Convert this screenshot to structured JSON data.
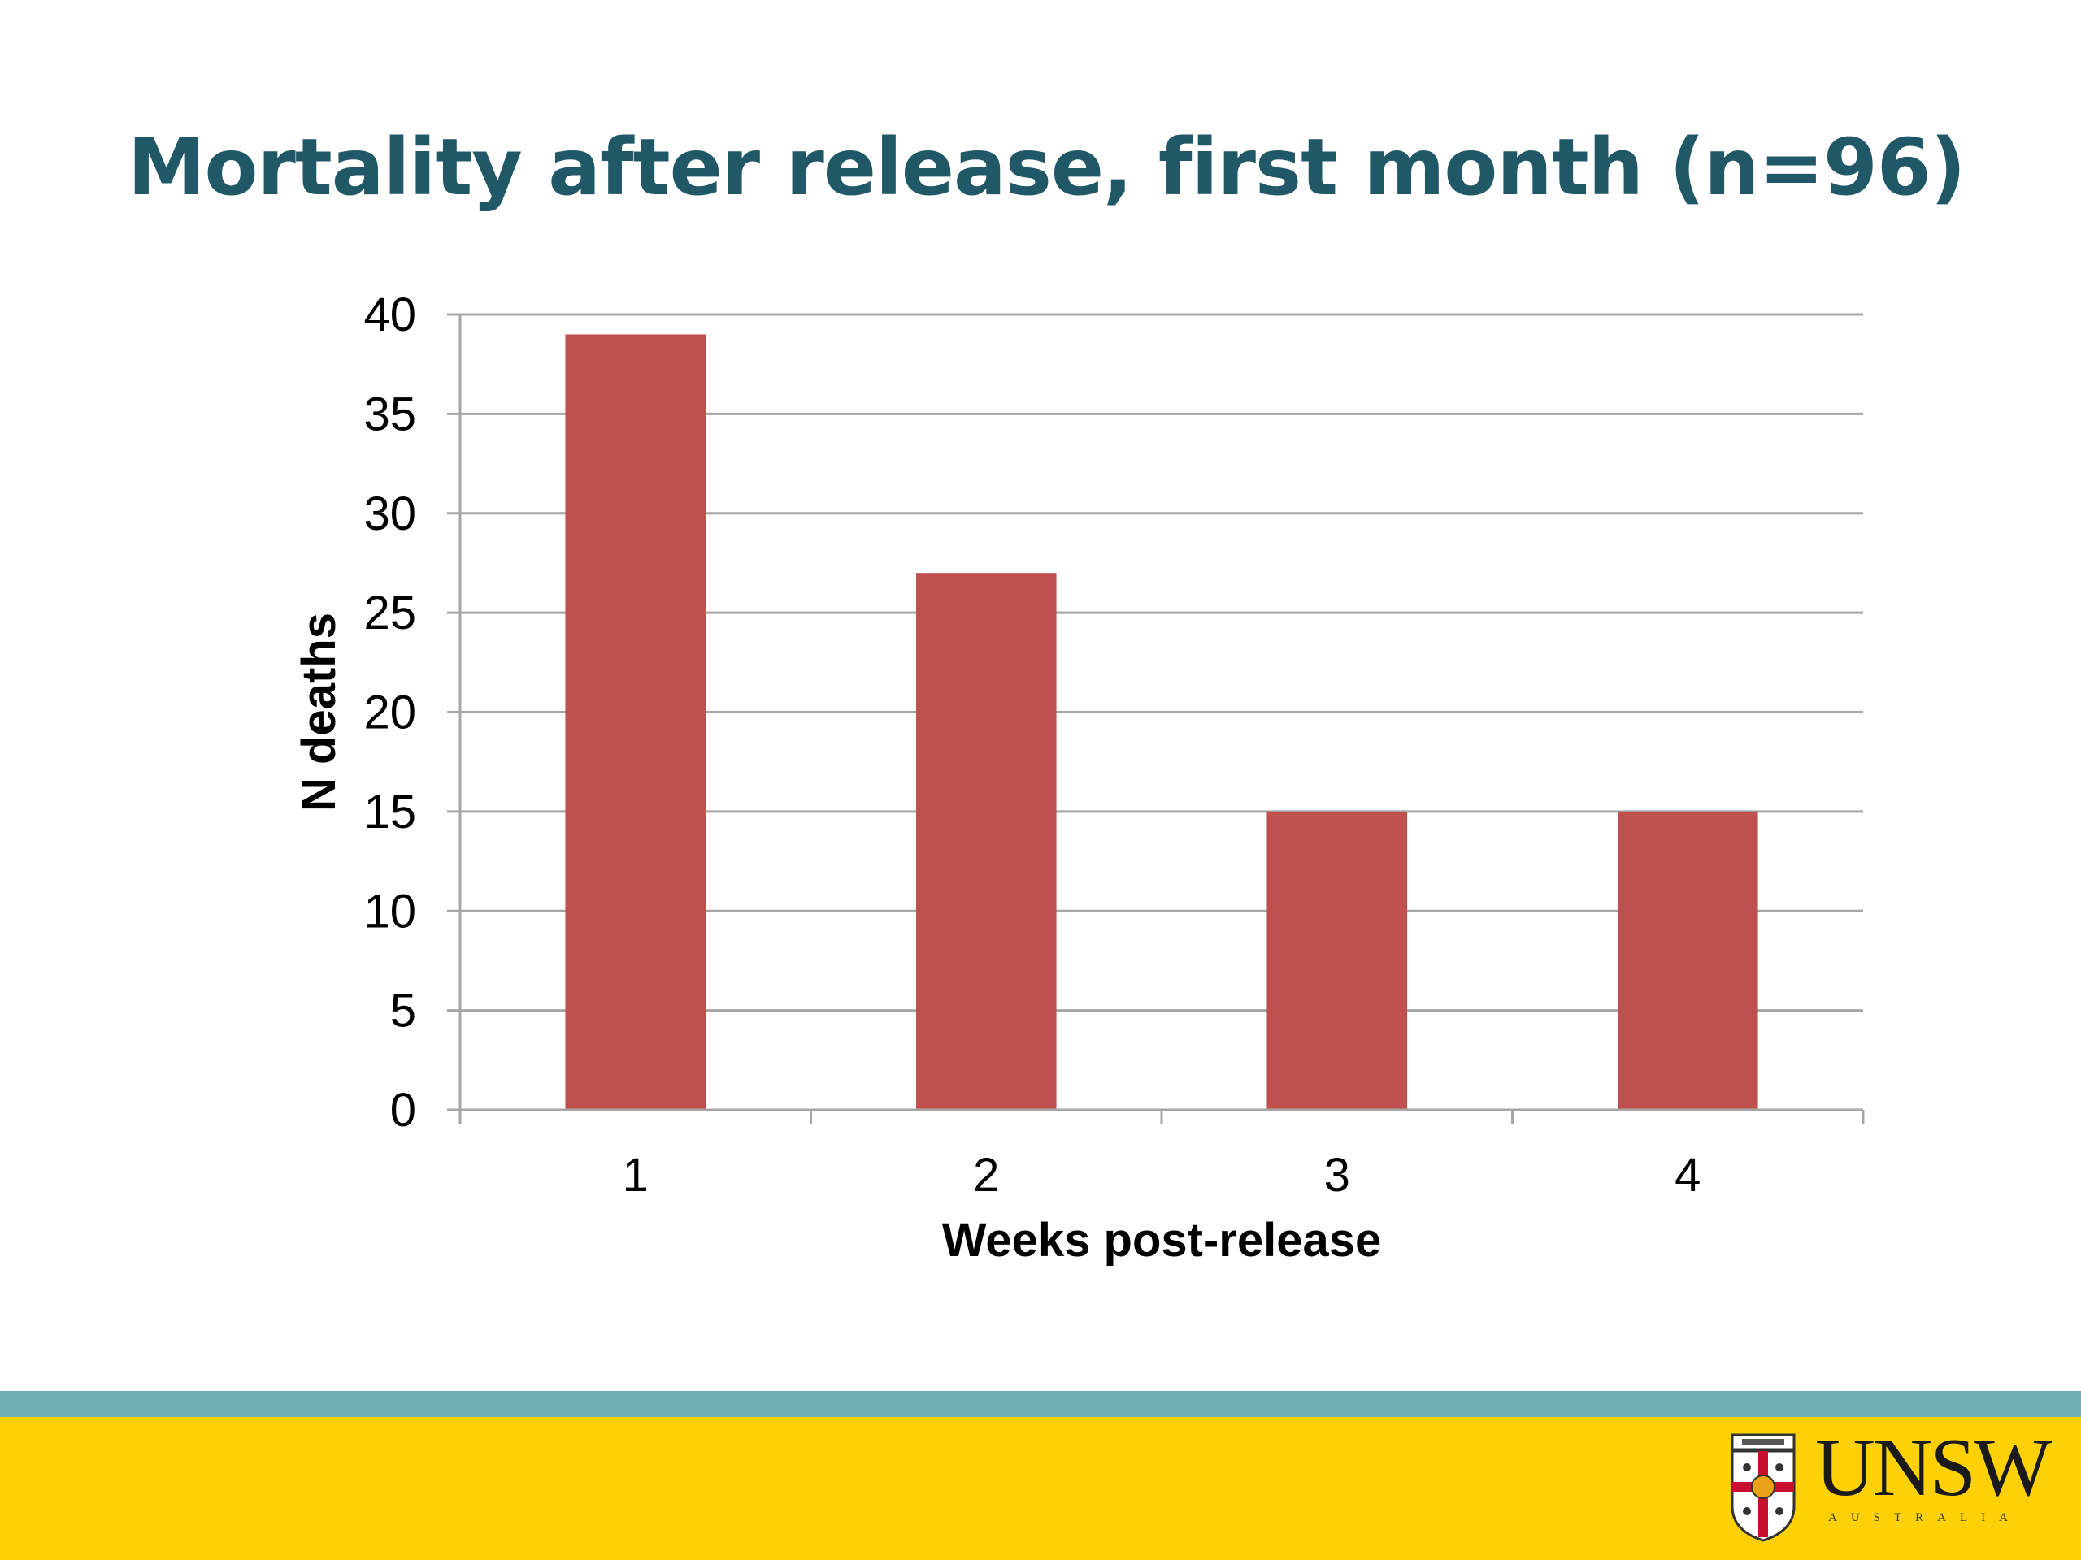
{
  "slide": {
    "title": "Mortality after release, first month (n=96)"
  },
  "chart_data": {
    "type": "bar",
    "categories": [
      "1",
      "2",
      "3",
      "4"
    ],
    "values": [
      39,
      27,
      15,
      15
    ],
    "xlabel": "Weeks post-release",
    "ylabel": "N deaths",
    "ylim": [
      0,
      40
    ],
    "yticks": [
      0,
      5,
      10,
      15,
      20,
      25,
      30,
      35,
      40
    ],
    "grid": true,
    "legend": "none",
    "bar_color": "#c0504d"
  },
  "footer": {
    "stripe_color": "#6fb0b5",
    "band_color": "#fdd106",
    "logo": {
      "wordmark": "UNSW",
      "subword": "AUSTRALIA",
      "icon": "unsw-crest-icon"
    }
  }
}
